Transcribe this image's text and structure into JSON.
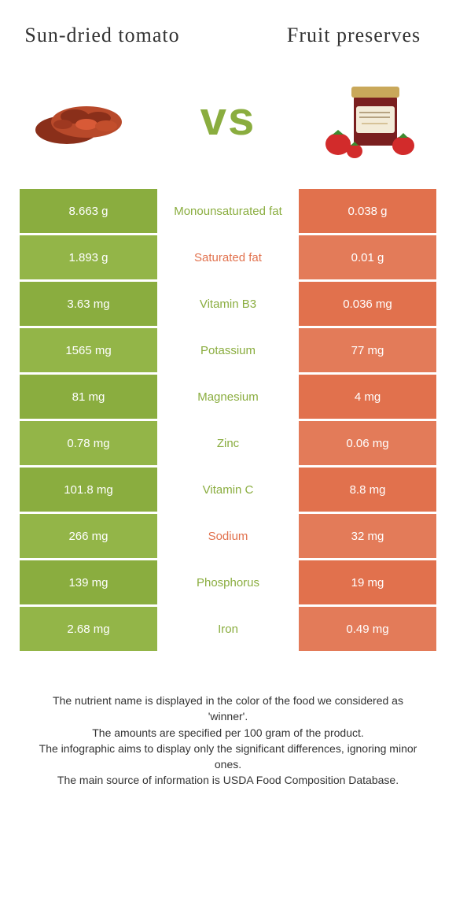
{
  "header": {
    "left_title": "Sun-dried tomato",
    "right_title": "Fruit preserves",
    "vs": "vs"
  },
  "colors": {
    "left_bar_a": "#8aad3f",
    "left_bar_b": "#93b548",
    "right_bar_a": "#e1714d",
    "right_bar_b": "#e37b59",
    "mid_green": "#8aad3f",
    "mid_orange": "#e1714d",
    "text": "#333333",
    "bg": "#ffffff"
  },
  "rows": [
    {
      "left": "8.663 g",
      "label": "Monounsaturated fat",
      "right": "0.038 g",
      "winner": "left"
    },
    {
      "left": "1.893 g",
      "label": "Saturated fat",
      "right": "0.01 g",
      "winner": "right"
    },
    {
      "left": "3.63 mg",
      "label": "Vitamin B3",
      "right": "0.036 mg",
      "winner": "left"
    },
    {
      "left": "1565 mg",
      "label": "Potassium",
      "right": "77 mg",
      "winner": "left"
    },
    {
      "left": "81 mg",
      "label": "Magnesium",
      "right": "4 mg",
      "winner": "left"
    },
    {
      "left": "0.78 mg",
      "label": "Zinc",
      "right": "0.06 mg",
      "winner": "left"
    },
    {
      "left": "101.8 mg",
      "label": "Vitamin C",
      "right": "8.8 mg",
      "winner": "left"
    },
    {
      "left": "266 mg",
      "label": "Sodium",
      "right": "32 mg",
      "winner": "right"
    },
    {
      "left": "139 mg",
      "label": "Phosphorus",
      "right": "19 mg",
      "winner": "left"
    },
    {
      "left": "2.68 mg",
      "label": "Iron",
      "right": "0.49 mg",
      "winner": "left"
    }
  ],
  "footer": {
    "line1": "The nutrient name is displayed in the color of the food we considered as 'winner'.",
    "line2": "The amounts are specified per 100 gram of the product.",
    "line3": "The infographic aims to display only the significant differences, ignoring minor ones.",
    "line4": "The main source of information is USDA Food Composition Database."
  }
}
